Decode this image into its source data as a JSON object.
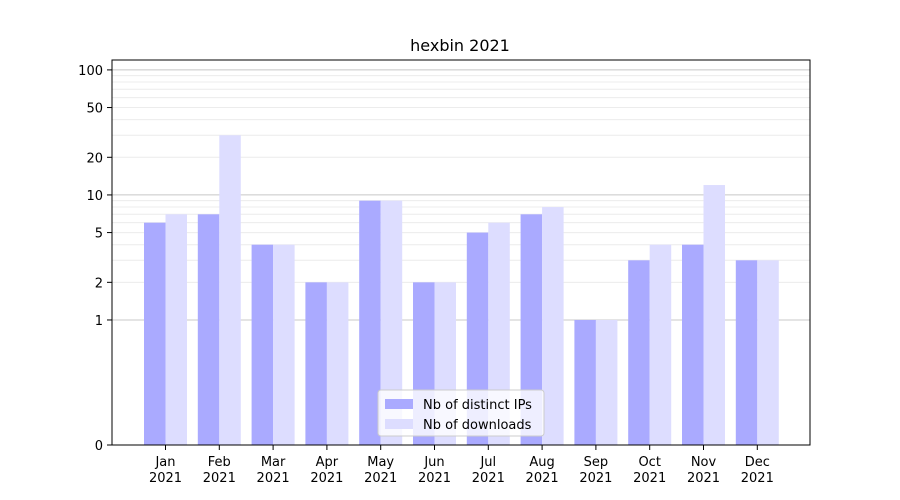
{
  "chart_data": {
    "type": "bar",
    "title": "hexbin 2021",
    "xlabel": "",
    "ylabel": "",
    "yscale": "symlog",
    "ylim": [
      0,
      120
    ],
    "y_ticks": [
      0,
      1,
      2,
      5,
      10,
      20,
      50,
      100
    ],
    "grid": "horizontal",
    "legend_position": "bottom-center",
    "categories": [
      "Jan\n2021",
      "Feb\n2021",
      "Mar\n2021",
      "Apr\n2021",
      "May\n2021",
      "Jun\n2021",
      "Jul\n2021",
      "Aug\n2021",
      "Sep\n2021",
      "Oct\n2021",
      "Nov\n2021",
      "Dec\n2021"
    ],
    "series": [
      {
        "name": "Nb of distinct IPs",
        "color": "#aaaaff",
        "values": [
          6,
          7,
          4,
          2,
          9,
          2,
          5,
          7,
          1,
          3,
          4,
          3
        ]
      },
      {
        "name": "Nb of downloads",
        "color": "#ddddff",
        "values": [
          7,
          30,
          4,
          2,
          9,
          2,
          6,
          8,
          1,
          4,
          12,
          3
        ]
      }
    ]
  }
}
